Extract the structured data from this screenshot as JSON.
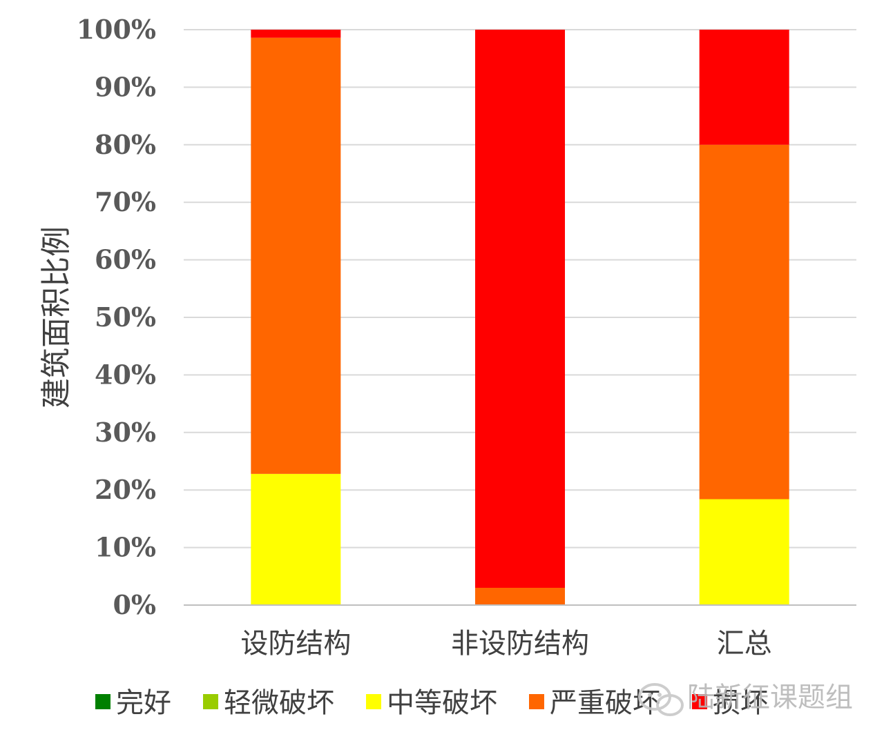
{
  "chart_data": {
    "type": "bar",
    "stacked": true,
    "percent": true,
    "categories": [
      "设防结构",
      "非设防结构",
      "汇总"
    ],
    "series": [
      {
        "name": "完好",
        "color": "#008000",
        "values": [
          0,
          0,
          0
        ]
      },
      {
        "name": "轻微破坏",
        "color": "#99cc00",
        "values": [
          0,
          0,
          0
        ]
      },
      {
        "name": "中等破坏",
        "color": "#ffff00",
        "values": [
          22.8,
          0,
          18.4
        ]
      },
      {
        "name": "严重破坏",
        "color": "#ff6600",
        "values": [
          75.8,
          3.0,
          61.6
        ]
      },
      {
        "name": "损坏",
        "color": "#ff0000",
        "values": [
          1.4,
          97.0,
          20.0
        ]
      }
    ],
    "ylabel": "建筑面积比例",
    "xlabel": "",
    "ylim": [
      0,
      100
    ],
    "yticks": [
      "0%",
      "10%",
      "20%",
      "30%",
      "40%",
      "50%",
      "60%",
      "70%",
      "80%",
      "90%",
      "100%"
    ],
    "grid": true,
    "legend_position": "bottom"
  },
  "watermark": "陆新征课题组"
}
